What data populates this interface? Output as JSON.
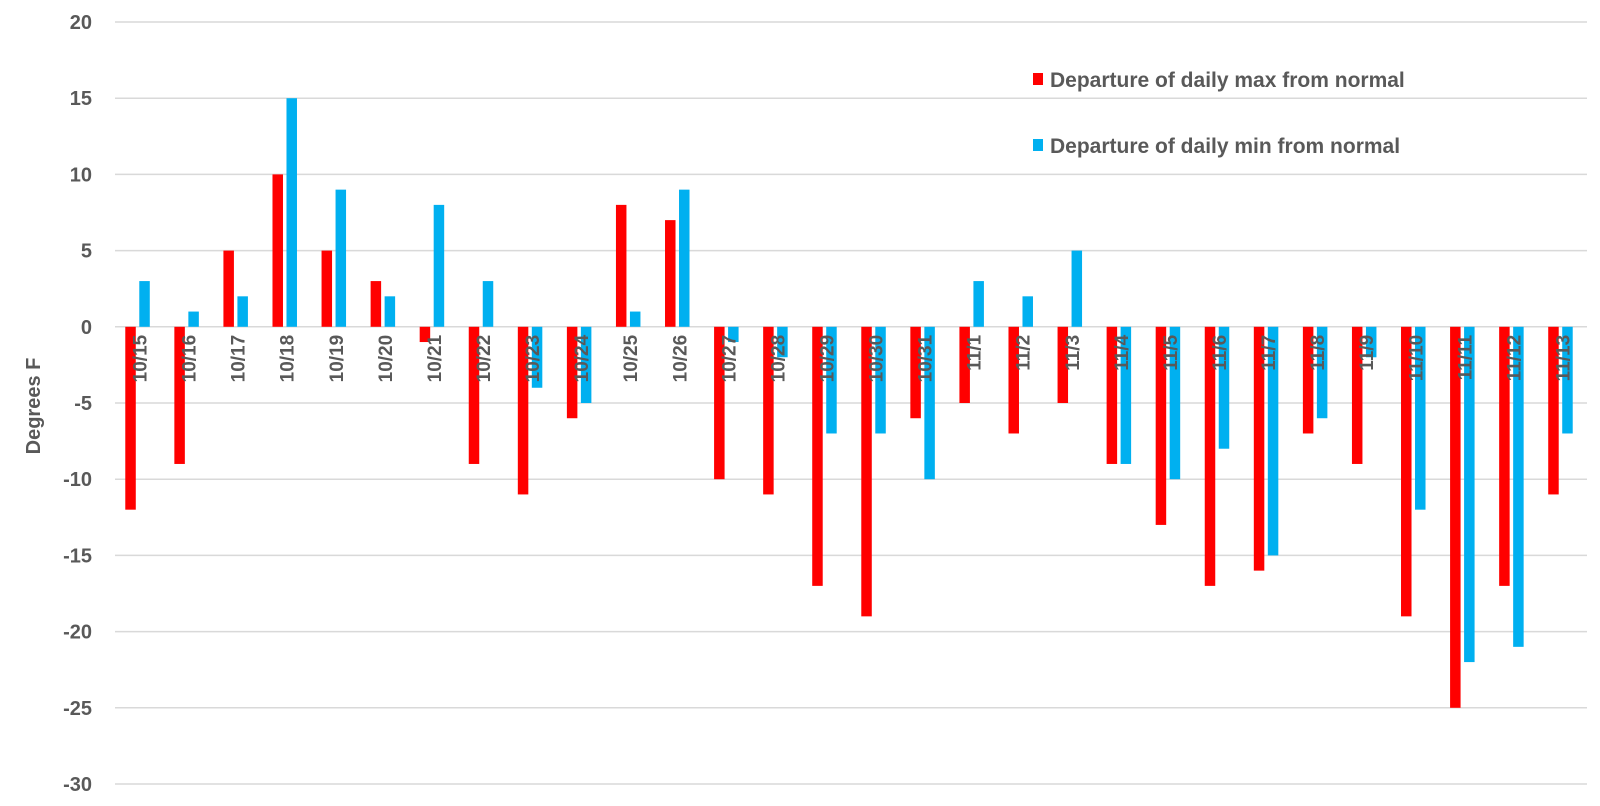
{
  "chart_data": {
    "type": "bar",
    "ylabel": "Degrees F",
    "ylim": [
      -30,
      20
    ],
    "ytick_step": 5,
    "grid": true,
    "legend_position": "top-right",
    "categories": [
      "10/15",
      "10/16",
      "10/17",
      "10/18",
      "10/19",
      "10/20",
      "10/21",
      "10/22",
      "10/23",
      "10/24",
      "10/25",
      "10/26",
      "10/27",
      "10/28",
      "10/29",
      "10/30",
      "10/31",
      "11/1",
      "11/2",
      "11/3",
      "11/4",
      "11/5",
      "11/6",
      "11/7",
      "11/8",
      "11/9",
      "11/10",
      "11/11",
      "11/12",
      "11/13"
    ],
    "series": [
      {
        "name": "Departure of daily max from normal",
        "color": "#ff0000",
        "values": [
          -12,
          -9,
          5,
          10,
          5,
          3,
          -1,
          -9,
          -11,
          -6,
          8,
          7,
          -10,
          -11,
          -17,
          -19,
          -6,
          -5,
          -7,
          -5,
          -9,
          -13,
          -17,
          -16,
          -7,
          -9,
          -19,
          -25,
          -17,
          -11
        ]
      },
      {
        "name": "Departure of daily min from normal",
        "color": "#00b0f0",
        "values": [
          3,
          1,
          2,
          15,
          9,
          2,
          8,
          3,
          -4,
          -5,
          1,
          9,
          -1,
          -2,
          -7,
          -7,
          -10,
          3,
          2,
          5,
          -9,
          -10,
          -8,
          -15,
          -6,
          -2,
          -12,
          -22,
          -21,
          -7
        ]
      }
    ]
  }
}
